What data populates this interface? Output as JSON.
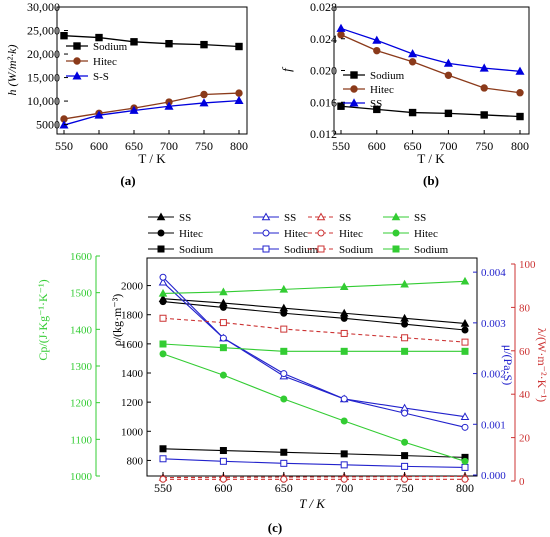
{
  "chart_data": [
    {
      "panel": "(a)",
      "type": "line",
      "x": [
        550,
        600,
        650,
        700,
        750,
        800
      ],
      "xlabel": "T / K",
      "ylabel": "h (W/m²·k)",
      "xticks": [
        "550",
        "600",
        "650",
        "700",
        "750",
        "800"
      ],
      "ylim": [
        3000,
        30000
      ],
      "yticks": [
        "5000",
        "10,000",
        "15,000",
        "20,000",
        "25,000",
        "30,000"
      ],
      "legend_position": "right",
      "series": [
        {
          "name": "Sodium",
          "color": "#000000",
          "marker": "square",
          "values": [
            23900,
            23500,
            22600,
            22200,
            22000,
            21600
          ]
        },
        {
          "name": "Hitec",
          "color": "#8b3a1a",
          "marker": "circle",
          "values": [
            6200,
            7400,
            8500,
            9800,
            11400,
            11700
          ]
        },
        {
          "name": "S-S",
          "color": "#0000dd",
          "marker": "triangle",
          "values": [
            4900,
            7000,
            8000,
            8900,
            9600,
            10100
          ]
        }
      ]
    },
    {
      "panel": "(b)",
      "type": "line",
      "x": [
        550,
        600,
        650,
        700,
        750,
        800
      ],
      "xlabel": "T / K",
      "ylabel": "f",
      "xticks": [
        "550",
        "600",
        "650",
        "700",
        "750",
        "800"
      ],
      "ylim": [
        0.012,
        0.028
      ],
      "yticks": [
        "0.012",
        "0.016",
        "0.020",
        "0.024",
        "0.028"
      ],
      "legend_position": "left",
      "series": [
        {
          "name": "Sodium",
          "color": "#000000",
          "marker": "square",
          "values": [
            0.0155,
            0.0151,
            0.0147,
            0.0146,
            0.0144,
            0.0142
          ]
        },
        {
          "name": "Hitec",
          "color": "#8b3a1a",
          "marker": "circle",
          "values": [
            0.0245,
            0.0225,
            0.0211,
            0.0194,
            0.0178,
            0.0172
          ]
        },
        {
          "name": "SS",
          "color": "#0000dd",
          "marker": "triangle",
          "values": [
            0.0253,
            0.0238,
            0.0221,
            0.0209,
            0.0203,
            0.0199
          ]
        }
      ]
    },
    {
      "panel": "(c)",
      "type": "line",
      "x": [
        550,
        600,
        650,
        700,
        750,
        800
      ],
      "xlabel": "T / K",
      "xticks": [
        "550",
        "600",
        "650",
        "700",
        "750",
        "800"
      ],
      "axes": {
        "rho": {
          "label": "ρ/(kg·m⁻³)",
          "color": "#000000",
          "ylim": [
            700,
            2100
          ],
          "yticks": [
            "800",
            "1000",
            "1200",
            "1400",
            "1600",
            "1800",
            "2000"
          ]
        },
        "cp": {
          "label": "Cp/(J·Kg⁻¹·K⁻¹)",
          "color": "#33cc33",
          "ylim": [
            1000,
            1600
          ],
          "yticks": [
            "1000",
            "1100",
            "1200",
            "1300",
            "1400",
            "1500",
            "1600"
          ]
        },
        "mu": {
          "label": "μ/(Pa·S)",
          "color": "#2222cc",
          "ylim": [
            0,
            0.0042
          ],
          "yticks": [
            "0.000",
            "0.001",
            "0.002",
            "0.003",
            "0.004"
          ]
        },
        "lambda": {
          "label": "λ/(W·m⁻²·K⁻¹)",
          "color": "#cc3333",
          "ylim": [
            0,
            100
          ],
          "yticks": [
            "0",
            "20",
            "40",
            "60",
            "80",
            "100"
          ]
        }
      },
      "legend_columns": [
        {
          "items": [
            {
              "name": "SS",
              "color": "#000000",
              "marker": "triangle",
              "fill": true,
              "dash": false
            },
            {
              "name": "Hitec",
              "color": "#000000",
              "marker": "circle",
              "fill": true,
              "dash": false
            },
            {
              "name": "Sodium",
              "color": "#000000",
              "marker": "square",
              "fill": true,
              "dash": false
            }
          ]
        },
        {
          "items": [
            {
              "name": "SS",
              "color": "#2222cc",
              "marker": "triangle",
              "fill": false,
              "dash": false
            },
            {
              "name": "Hitec",
              "color": "#2222cc",
              "marker": "circle",
              "fill": false,
              "dash": false
            },
            {
              "name": "Sodium",
              "color": "#2222cc",
              "marker": "square",
              "fill": false,
              "dash": false
            }
          ]
        },
        {
          "items": [
            {
              "name": "SS",
              "color": "#cc3333",
              "marker": "triangle",
              "fill": false,
              "dash": true
            },
            {
              "name": "Hitec",
              "color": "#cc3333",
              "marker": "circle",
              "fill": false,
              "dash": true
            },
            {
              "name": "Sodium",
              "color": "#cc3333",
              "marker": "square",
              "fill": false,
              "dash": true
            }
          ]
        },
        {
          "items": [
            {
              "name": "SS",
              "color": "#33cc33",
              "marker": "triangle",
              "fill": true,
              "dash": false
            },
            {
              "name": "Hitec",
              "color": "#33cc33",
              "marker": "circle",
              "fill": true,
              "dash": false
            },
            {
              "name": "Sodium",
              "color": "#33cc33",
              "marker": "square",
              "fill": true,
              "dash": false
            }
          ]
        }
      ],
      "series": [
        {
          "group": "rho",
          "name": "SS",
          "color": "#000000",
          "marker": "triangle",
          "fill": true,
          "dash": false,
          "values": [
            1910,
            1880,
            1845,
            1810,
            1775,
            1740
          ]
        },
        {
          "group": "rho",
          "name": "Hitec",
          "color": "#000000",
          "marker": "circle",
          "fill": true,
          "dash": false,
          "values": [
            1890,
            1850,
            1810,
            1775,
            1735,
            1695
          ]
        },
        {
          "group": "rho",
          "name": "Sodium",
          "color": "#000000",
          "marker": "square",
          "fill": true,
          "dash": false,
          "values": [
            880,
            868,
            856,
            845,
            833,
            821
          ]
        },
        {
          "group": "mu",
          "name": "SS",
          "color": "#2222cc",
          "marker": "triangle",
          "fill": false,
          "dash": false,
          "values": [
            0.0038,
            0.0027,
            0.00195,
            0.0015,
            0.00132,
            0.00115
          ]
        },
        {
          "group": "mu",
          "name": "Hitec",
          "color": "#2222cc",
          "marker": "circle",
          "fill": false,
          "dash": false,
          "values": [
            0.0039,
            0.0027,
            0.002,
            0.0015,
            0.00122,
            0.00094
          ]
        },
        {
          "group": "mu",
          "name": "Sodium",
          "color": "#2222cc",
          "marker": "square",
          "fill": false,
          "dash": false,
          "values": [
            0.00032,
            0.00027,
            0.00023,
            0.0002,
            0.00017,
            0.00015
          ]
        },
        {
          "group": "lambda",
          "name": "SS",
          "color": "#cc3333",
          "marker": "triangle",
          "fill": false,
          "dash": true,
          "values": [
            1.6,
            1.7,
            1.8,
            1.9,
            2.0,
            2.1
          ]
        },
        {
          "group": "lambda",
          "name": "Hitec",
          "color": "#cc3333",
          "marker": "circle",
          "fill": false,
          "dash": true,
          "values": [
            0.8,
            0.8,
            0.8,
            0.8,
            0.8,
            0.8
          ]
        },
        {
          "group": "lambda",
          "name": "Sodium",
          "color": "#cc3333",
          "marker": "square",
          "fill": false,
          "dash": true,
          "values": [
            75,
            73,
            70,
            68,
            66,
            64
          ]
        },
        {
          "group": "cp",
          "name": "SS",
          "color": "#33cc33",
          "marker": "triangle",
          "fill": true,
          "dash": false,
          "values": [
            1498,
            1502,
            1509,
            1516,
            1523,
            1531
          ]
        },
        {
          "group": "cp",
          "name": "Hitec",
          "color": "#33cc33",
          "marker": "circle",
          "fill": true,
          "dash": false,
          "values": [
            1333,
            1275,
            1210,
            1150,
            1092,
            1040
          ]
        },
        {
          "group": "cp",
          "name": "Sodium",
          "color": "#33cc33",
          "marker": "square",
          "fill": true,
          "dash": false,
          "values": [
            1360,
            1350,
            1340,
            1340,
            1340,
            1340
          ]
        }
      ]
    }
  ]
}
